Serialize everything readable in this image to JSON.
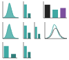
{
  "chart_data": [
    {
      "type": "area",
      "x": [
        0,
        1,
        2,
        3,
        4,
        5,
        6,
        7,
        8,
        9,
        10,
        11,
        12
      ],
      "values": [
        0,
        2,
        8,
        20,
        45,
        72,
        55,
        30,
        12,
        5,
        2,
        1,
        0
      ],
      "xlim": [
        0,
        12
      ],
      "ylim": [
        0,
        80
      ],
      "color": "#3fa9a3",
      "tick_labels": false
    },
    {
      "type": "bar",
      "values": [
        65,
        22
      ],
      "colors": [
        "#3fa9a3",
        "#2f7f7b"
      ],
      "ylim": [
        0,
        80
      ],
      "tick_labels": false
    },
    {
      "type": "bar",
      "values": [
        40,
        25,
        30
      ],
      "colors": [
        "#222222",
        "#3fa9a3",
        "#7b4f9e"
      ],
      "ylim": [
        0,
        50
      ],
      "tick_labels": false
    },
    {
      "type": "area",
      "x": [
        0,
        1,
        2,
        3,
        4,
        5,
        6,
        7,
        8,
        9,
        10,
        11,
        12
      ],
      "values": [
        0,
        3,
        10,
        28,
        55,
        70,
        48,
        25,
        10,
        4,
        2,
        1,
        0
      ],
      "xlim": [
        0,
        12
      ],
      "ylim": [
        0,
        80
      ],
      "color": "#3fa9a3",
      "tick_labels": false
    },
    {
      "type": "bar",
      "values": [
        55,
        25
      ],
      "colors": [
        "#3fa9a3",
        "#2f7f7b"
      ],
      "ylim": [
        0,
        70
      ],
      "tick_labels": false
    },
    {
      "type": "bar",
      "values": [
        50,
        20
      ],
      "colors": [
        "#3fa9a3",
        "#2f7f7b"
      ],
      "ylim": [
        0,
        70
      ],
      "tick_labels": false
    },
    {
      "type": "line",
      "x": [
        0,
        1,
        2,
        3,
        4,
        5,
        6,
        7,
        8,
        9,
        10,
        11,
        12
      ],
      "xlim": [
        0,
        12
      ],
      "ylim": [
        0,
        80
      ],
      "tick_labels": false,
      "series": [
        {
          "color": "#3fa9a3",
          "values": [
            0,
            2,
            6,
            18,
            40,
            68,
            60,
            35,
            15,
            6,
            2,
            1,
            0
          ]
        },
        {
          "color": "#555555",
          "values": [
            0,
            1,
            4,
            10,
            25,
            45,
            50,
            40,
            22,
            10,
            4,
            1,
            0
          ]
        }
      ]
    },
    {
      "type": "bar",
      "values": [
        30,
        10
      ],
      "colors": [
        "#3fa9a3",
        "#2f7f7b"
      ],
      "ylim": [
        0,
        40
      ],
      "tick_labels": false
    },
    {
      "type": "bar",
      "values": [
        30,
        15
      ],
      "colors": [
        "#3fa9a3",
        "#2f7f7b"
      ],
      "ylim": [
        0,
        40
      ],
      "tick_labels": false
    }
  ]
}
